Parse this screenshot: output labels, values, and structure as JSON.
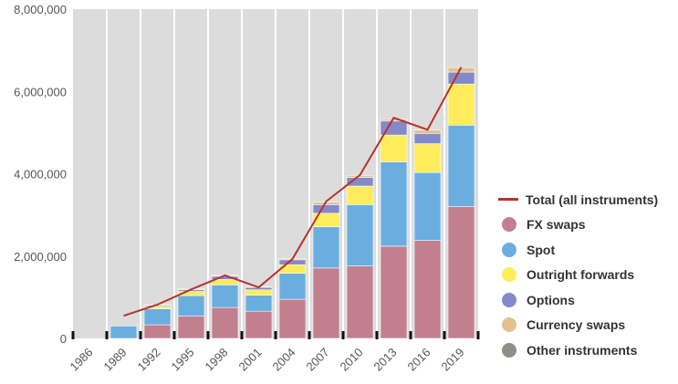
{
  "chart_data": {
    "type": "bar",
    "categories": [
      "1986",
      "1989",
      "1992",
      "1995",
      "1998",
      "2001",
      "2004",
      "2007",
      "2010",
      "2013",
      "2016",
      "2019"
    ],
    "series": [
      {
        "name": "FX swaps",
        "color": "#c27f8e",
        "values": [
          0,
          0,
          330000,
          540000,
          750000,
          660000,
          950000,
          1710000,
          1760000,
          2240000,
          2380000,
          3200000
        ]
      },
      {
        "name": "Spot",
        "color": "#6aaee0",
        "values": [
          0,
          300000,
          390000,
          500000,
          550000,
          390000,
          630000,
          1000000,
          1490000,
          2050000,
          1650000,
          1980000
        ]
      },
      {
        "name": "Outright forwards",
        "color": "#ffec5c",
        "values": [
          0,
          0,
          60000,
          100000,
          130000,
          130000,
          210000,
          330000,
          450000,
          650000,
          700000,
          1000000
        ]
      },
      {
        "name": "Options",
        "color": "#8489c8",
        "values": [
          0,
          0,
          30000,
          40000,
          80000,
          60000,
          120000,
          210000,
          210000,
          340000,
          250000,
          290000
        ]
      },
      {
        "name": "Currency swaps",
        "color": "#e2c18f",
        "values": [
          0,
          0,
          10000,
          20000,
          20000,
          20000,
          30000,
          60000,
          50000,
          50000,
          80000,
          110000
        ]
      },
      {
        "name": "Other instruments",
        "color": "#8a9185",
        "values": [
          0,
          0,
          0,
          0,
          0,
          0,
          0,
          0,
          0,
          0,
          0,
          0
        ]
      }
    ],
    "line": {
      "name": "Total (all instruments)",
      "color": "#b5332f",
      "values": [
        null,
        550000,
        820000,
        1190000,
        1530000,
        1240000,
        1930000,
        3330000,
        3970000,
        5360000,
        5070000,
        6590000
      ]
    },
    "ylim": [
      0,
      8000000
    ],
    "yticks": [
      0,
      2000000,
      4000000,
      6000000,
      8000000
    ],
    "ytick_labels": [
      "0",
      "2,000,000",
      "4,000,000",
      "6,000,000",
      "8,000,000"
    ],
    "xlabel": "",
    "ylabel": "",
    "title": "",
    "grid": false,
    "plot_background": "#dcdcdc",
    "legend_position": "right"
  }
}
